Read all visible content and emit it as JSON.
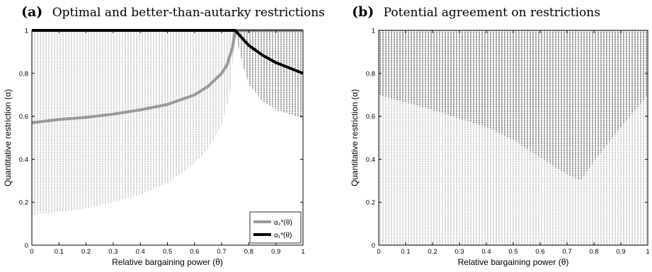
{
  "chart_data": [
    {
      "type": "line",
      "panel_letter": "(a)",
      "title": "Optimal and better-than-autarky restrictions",
      "xlabel": "Relative bargaining power (θ)",
      "ylabel": "Quantitative restriction (α)",
      "xlim": [
        0,
        1
      ],
      "ylim": [
        0,
        1
      ],
      "xticks": [
        "0",
        "0.1",
        "0.2",
        "0.3",
        "0.4",
        "0.5",
        "0.6",
        "0.7",
        "0.8",
        "0.9",
        "1"
      ],
      "yticks": [
        "0",
        "0.2",
        "0.4",
        "0.6",
        "0.8",
        "1"
      ],
      "legend_position": "bottom-right",
      "series": [
        {
          "name": "α₂*(θ)",
          "color": "#999999",
          "x": [
            0,
            0.1,
            0.2,
            0.3,
            0.4,
            0.5,
            0.6,
            0.65,
            0.7,
            0.72,
            0.74,
            0.75,
            0.8,
            0.9,
            1
          ],
          "y": [
            0.57,
            0.585,
            0.595,
            0.61,
            0.63,
            0.655,
            0.7,
            0.74,
            0.8,
            0.84,
            0.92,
            1,
            1,
            1,
            1
          ]
        },
        {
          "name": "α₁*(θ)",
          "color": "#000000",
          "x": [
            0,
            0.1,
            0.2,
            0.3,
            0.4,
            0.5,
            0.6,
            0.7,
            0.75,
            0.8,
            0.85,
            0.9,
            0.95,
            1
          ],
          "y": [
            1,
            1,
            1,
            1,
            1,
            1,
            1,
            1,
            1,
            0.93,
            0.885,
            0.85,
            0.825,
            0.8
          ]
        }
      ],
      "shaded_regions": [
        {
          "color": "#cfcfcf",
          "x": [
            0,
            0.05,
            0.1,
            0.2,
            0.3,
            0.4,
            0.5,
            0.6,
            0.65,
            0.7,
            0.73,
            0.75
          ],
          "lower": [
            0.14,
            0.15,
            0.155,
            0.17,
            0.2,
            0.235,
            0.29,
            0.38,
            0.45,
            0.56,
            0.7,
            0.98
          ],
          "upper": [
            1,
            1,
            1,
            1,
            1,
            1,
            1,
            1,
            1,
            1,
            1,
            1
          ]
        },
        {
          "color": "#9a9a9a",
          "x": [
            0.75,
            0.78,
            0.8,
            0.85,
            0.9,
            0.95,
            1
          ],
          "lower": [
            0.98,
            0.83,
            0.75,
            0.67,
            0.63,
            0.61,
            0.59
          ],
          "upper": [
            1,
            1,
            1,
            1,
            1,
            1,
            1
          ]
        }
      ]
    },
    {
      "type": "area",
      "panel_letter": "(b)",
      "title": "Potential agreement on restrictions",
      "xlabel": "Relative bargaining power (θ)",
      "ylabel": "Quantitative restriction (α)",
      "xlim": [
        0,
        1
      ],
      "ylim": [
        0,
        1
      ],
      "xticks": [
        "0",
        "0.1",
        "0.2",
        "0.3",
        "0.4",
        "0.5",
        "0.6",
        "0.7",
        "0.8",
        "0.9",
        "1"
      ],
      "yticks": [
        "0",
        "0.2",
        "0.4",
        "0.6",
        "0.8",
        "1"
      ],
      "shaded_regions": [
        {
          "color": "#cfcfcf",
          "x": [
            0,
            1
          ],
          "lower": [
            0,
            0
          ],
          "upper": [
            1,
            1
          ]
        },
        {
          "color": "#8f8f8f",
          "x": [
            0,
            0.1,
            0.2,
            0.3,
            0.4,
            0.5,
            0.6,
            0.7,
            0.75,
            0.8,
            0.9,
            1
          ],
          "lower": [
            0.7,
            0.665,
            0.63,
            0.59,
            0.55,
            0.49,
            0.41,
            0.33,
            0.3,
            0.39,
            0.55,
            0.7
          ],
          "upper": [
            1,
            1,
            1,
            1,
            1,
            1,
            1,
            1,
            1,
            1,
            1,
            1
          ]
        }
      ]
    }
  ]
}
